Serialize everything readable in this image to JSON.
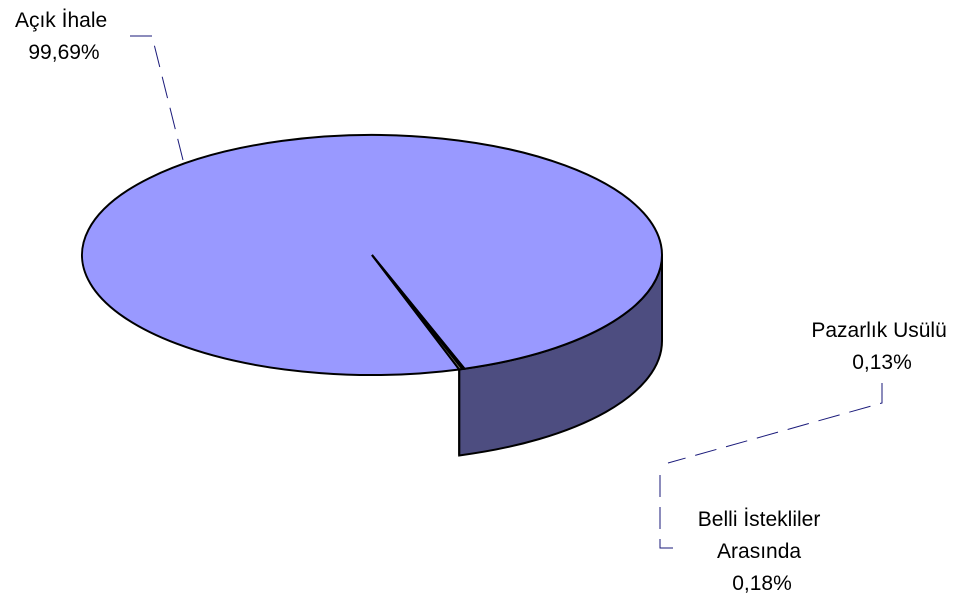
{
  "chart_data": {
    "type": "pie",
    "title": "",
    "style": "3d",
    "categories": [
      "Açık İhale",
      "Pazarlık Usülü",
      "Belli İstekliler Arasında"
    ],
    "values": [
      99.69,
      0.13,
      0.18
    ],
    "value_labels": [
      "99,69%",
      "0,13%",
      "0,18%"
    ],
    "label_lines": [
      [
        "Açık İhale",
        "99,69%"
      ],
      [
        "Pazarlık Usülü",
        "0,13%"
      ],
      [
        "Belli İstekliler",
        "Arasında",
        "0,18%"
      ]
    ],
    "colors": [
      "#9999ff",
      "#808000",
      "#808066"
    ],
    "side_colors": [
      "#4d4d80",
      "#40402a",
      "#808066"
    ]
  }
}
